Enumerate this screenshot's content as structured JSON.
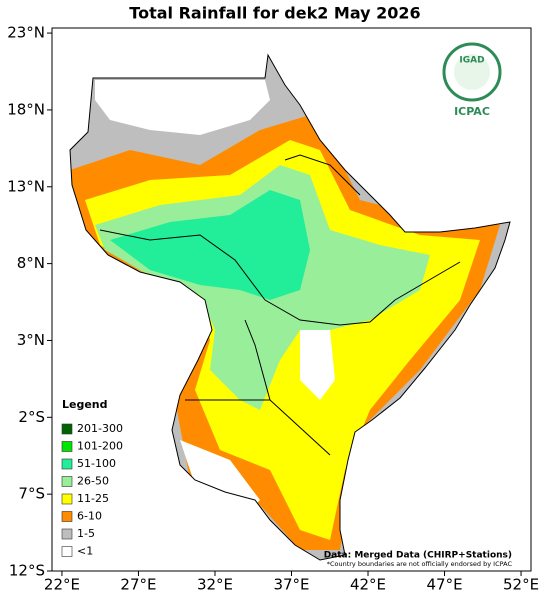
{
  "title": "Total Rainfall for dek2 May 2026",
  "x_axis": {
    "lim": [
      21.35,
      52.65
    ],
    "ticks": [
      {
        "value": 22,
        "label": "22°E"
      },
      {
        "value": 27,
        "label": "27°E"
      },
      {
        "value": 32,
        "label": "32°E"
      },
      {
        "value": 37,
        "label": "37°E"
      },
      {
        "value": 42,
        "label": "42°E"
      },
      {
        "value": 47,
        "label": "47°E"
      },
      {
        "value": 52,
        "label": "52°E"
      }
    ]
  },
  "y_axis": {
    "lim": [
      -12,
      23.33
    ],
    "ticks": [
      {
        "value": -12,
        "label": "12°S"
      },
      {
        "value": -7,
        "label": "7°S"
      },
      {
        "value": -2,
        "label": "2°S"
      },
      {
        "value": 3,
        "label": "3°N"
      },
      {
        "value": 8,
        "label": "8°N"
      },
      {
        "value": 13,
        "label": "13°N"
      },
      {
        "value": 18,
        "label": "18°N"
      },
      {
        "value": 23,
        "label": "23°N"
      }
    ]
  },
  "legend": {
    "title": "Legend",
    "items": [
      {
        "label": "201-300",
        "color": "#006400"
      },
      {
        "label": "101-200",
        "color": "#00e600"
      },
      {
        "label": "51-100",
        "color": "#22ee99"
      },
      {
        "label": "26-50",
        "color": "#99ee99"
      },
      {
        "label": "11-25",
        "color": "#ffff00"
      },
      {
        "label": "6-10",
        "color": "#ff8c00"
      },
      {
        "label": "1-5",
        "color": "#bebebe"
      },
      {
        "label": "<1",
        "color": "#ffffff"
      }
    ]
  },
  "credits": {
    "data": "Data: Merged Data (CHIRP+Stations)",
    "note": "*Country boundaries are not officially endorsed by ICPAC"
  },
  "logo": {
    "top": "IGAD",
    "bottom": "ICPAC"
  }
}
